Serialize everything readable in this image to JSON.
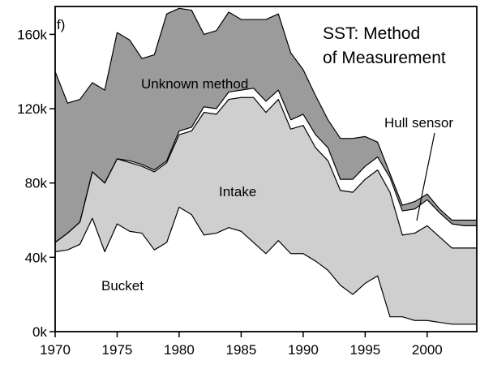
{
  "chart_data": {
    "type": "area",
    "panel_label": "f)",
    "title_lines": [
      "SST: Method",
      "of Measurement"
    ],
    "xlim": [
      1970,
      2004
    ],
    "ylim": [
      0,
      175000
    ],
    "x_ticks": [
      1970,
      1975,
      1980,
      1985,
      1990,
      1995,
      2000
    ],
    "x_tick_labels": [
      "1970",
      "1975",
      "1980",
      "1985",
      "1990",
      "1995",
      "2000"
    ],
    "y_ticks": [
      0,
      40000,
      80000,
      120000,
      160000
    ],
    "y_tick_labels": [
      "0k",
      "40k",
      "80k",
      "120k",
      "160k"
    ],
    "grid": false,
    "x": [
      1970,
      1971,
      1972,
      1973,
      1974,
      1975,
      1976,
      1977,
      1978,
      1979,
      1980,
      1981,
      1982,
      1983,
      1984,
      1985,
      1986,
      1987,
      1988,
      1989,
      1990,
      1991,
      1992,
      1993,
      1994,
      1995,
      1996,
      1997,
      1998,
      1999,
      2000,
      2001,
      2002,
      2003,
      2004
    ],
    "series": [
      {
        "name": "Bucket",
        "fill": "#ffffff",
        "lower": [
          0,
          0,
          0,
          0,
          0,
          0,
          0,
          0,
          0,
          0,
          0,
          0,
          0,
          0,
          0,
          0,
          0,
          0,
          0,
          0,
          0,
          0,
          0,
          0,
          0,
          0,
          0,
          0,
          0,
          0,
          0,
          0,
          0,
          0,
          0
        ],
        "upper": [
          43000,
          44000,
          47000,
          61000,
          43000,
          58000,
          54000,
          53000,
          44000,
          48000,
          67000,
          63000,
          52000,
          53000,
          56000,
          54000,
          48000,
          42000,
          49000,
          42000,
          42000,
          38000,
          33000,
          25000,
          20000,
          26000,
          30000,
          8000,
          8000,
          6000,
          6000,
          5000,
          4000,
          4000,
          4000
        ]
      },
      {
        "name": "Intake",
        "fill": "#cfcfcf",
        "lower": [
          43000,
          44000,
          47000,
          61000,
          43000,
          58000,
          54000,
          53000,
          44000,
          48000,
          67000,
          63000,
          52000,
          53000,
          56000,
          54000,
          48000,
          42000,
          49000,
          42000,
          42000,
          38000,
          33000,
          25000,
          20000,
          26000,
          30000,
          8000,
          8000,
          6000,
          6000,
          5000,
          4000,
          4000,
          4000
        ],
        "upper": [
          48000,
          53000,
          59000,
          86000,
          80000,
          93000,
          91000,
          89000,
          86000,
          91000,
          106000,
          108000,
          118000,
          117000,
          125000,
          126000,
          126000,
          118000,
          125000,
          109000,
          111000,
          99000,
          92000,
          76000,
          75000,
          82000,
          87000,
          75000,
          52000,
          53000,
          57000,
          51000,
          45000,
          45000,
          45000
        ]
      },
      {
        "name": "Hull sensor",
        "fill": "#ffffff",
        "lower": [
          48000,
          53000,
          59000,
          86000,
          80000,
          93000,
          91000,
          89000,
          86000,
          91000,
          106000,
          108000,
          118000,
          117000,
          125000,
          126000,
          126000,
          118000,
          125000,
          109000,
          111000,
          99000,
          92000,
          76000,
          75000,
          82000,
          87000,
          75000,
          52000,
          53000,
          57000,
          51000,
          45000,
          45000,
          45000
        ],
        "upper": [
          48000,
          53000,
          59000,
          86000,
          80000,
          93000,
          92000,
          90000,
          87000,
          92000,
          108000,
          110000,
          121000,
          120000,
          129000,
          130000,
          131000,
          124000,
          130000,
          114000,
          117000,
          106000,
          99000,
          82000,
          82000,
          89000,
          94000,
          83000,
          65000,
          66000,
          71000,
          64000,
          58000,
          57000,
          57000
        ]
      },
      {
        "name": "Unknown method",
        "fill": "#9b9b9b",
        "lower": [
          48000,
          53000,
          59000,
          86000,
          80000,
          93000,
          92000,
          90000,
          87000,
          92000,
          108000,
          110000,
          121000,
          120000,
          129000,
          130000,
          131000,
          124000,
          130000,
          114000,
          117000,
          106000,
          99000,
          82000,
          82000,
          89000,
          94000,
          83000,
          65000,
          66000,
          71000,
          64000,
          58000,
          57000,
          57000
        ],
        "upper": [
          140000,
          123000,
          125000,
          134000,
          130000,
          161000,
          157000,
          147000,
          149000,
          171000,
          174000,
          173000,
          160000,
          162000,
          172000,
          168000,
          168000,
          168000,
          171000,
          150000,
          141000,
          127000,
          114000,
          104000,
          104000,
          105000,
          102000,
          85000,
          68000,
          70000,
          74000,
          66000,
          60000,
          60000,
          60000
        ]
      }
    ],
    "labels": [
      "Unknown method",
      "Intake",
      "Bucket",
      "Hull sensor"
    ]
  }
}
